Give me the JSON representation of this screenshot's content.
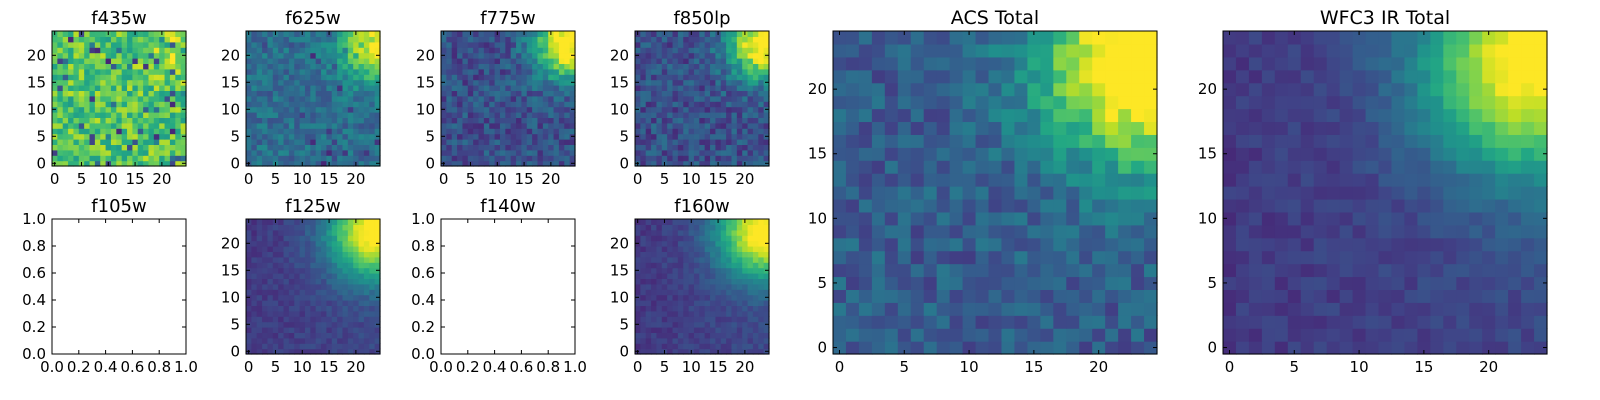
{
  "figure": {
    "panels": [
      {
        "id": "f435w",
        "title": "f435w",
        "kind": "image",
        "pattern": "noise-high",
        "xticks": [
          "0",
          "5",
          "10",
          "15",
          "20"
        ],
        "yticks": [
          "0",
          "5",
          "10",
          "15",
          "20"
        ]
      },
      {
        "id": "f625w",
        "title": "f625w",
        "kind": "image",
        "pattern": "corner-medium",
        "xticks": [
          "0",
          "5",
          "10",
          "15",
          "20"
        ],
        "yticks": [
          "0",
          "5",
          "10",
          "15",
          "20"
        ]
      },
      {
        "id": "f775w",
        "title": "f775w",
        "kind": "image",
        "pattern": "corner-low",
        "xticks": [
          "0",
          "5",
          "10",
          "15",
          "20"
        ],
        "yticks": [
          "0",
          "5",
          "10",
          "15",
          "20"
        ]
      },
      {
        "id": "f850lp",
        "title": "f850lp",
        "kind": "image",
        "pattern": "corner-low",
        "xticks": [
          "0",
          "5",
          "10",
          "15",
          "20"
        ],
        "yticks": [
          "0",
          "5",
          "10",
          "15",
          "20"
        ]
      },
      {
        "id": "f105w",
        "title": "f105w",
        "kind": "empty",
        "xticks": [
          "0.0",
          "0.2",
          "0.4",
          "0.6",
          "0.8",
          "1.0"
        ],
        "yticks": [
          "0.0",
          "0.2",
          "0.4",
          "0.6",
          "0.8",
          "1.0"
        ]
      },
      {
        "id": "f125w",
        "title": "f125w",
        "kind": "image",
        "pattern": "corner-smooth",
        "xticks": [
          "0",
          "5",
          "10",
          "15",
          "20"
        ],
        "yticks": [
          "0",
          "5",
          "10",
          "15",
          "20"
        ]
      },
      {
        "id": "f140w",
        "title": "f140w",
        "kind": "empty",
        "xticks": [
          "0.0",
          "0.2",
          "0.4",
          "0.6",
          "0.8",
          "1.0"
        ],
        "yticks": [
          "0.0",
          "0.2",
          "0.4",
          "0.6",
          "0.8",
          "1.0"
        ]
      },
      {
        "id": "f160w",
        "title": "f160w",
        "kind": "image",
        "pattern": "corner-smooth",
        "xticks": [
          "0",
          "5",
          "10",
          "15",
          "20"
        ],
        "yticks": [
          "0",
          "5",
          "10",
          "15",
          "20"
        ]
      },
      {
        "id": "acs_total",
        "title": "ACS Total",
        "kind": "image",
        "pattern": "corner-blocky",
        "xticks": [
          "0",
          "5",
          "10",
          "15",
          "20"
        ],
        "yticks": [
          "0",
          "5",
          "10",
          "15",
          "20"
        ]
      },
      {
        "id": "wfc3_ir_total",
        "title": "WFC3 IR Total",
        "kind": "image",
        "pattern": "corner-smooth",
        "xticks": [
          "0",
          "5",
          "10",
          "15",
          "20"
        ],
        "yticks": [
          "0",
          "5",
          "10",
          "15",
          "20"
        ]
      }
    ]
  },
  "chart_data": [
    {
      "type": "heatmap",
      "title": "f435w",
      "grid": [
        25,
        25
      ],
      "xlim": [
        -0.5,
        24.5
      ],
      "ylim": [
        -0.5,
        24.5
      ],
      "colormap": "viridis"
    },
    {
      "type": "heatmap",
      "title": "f625w",
      "grid": [
        25,
        25
      ],
      "xlim": [
        -0.5,
        24.5
      ],
      "ylim": [
        -0.5,
        24.5
      ],
      "colormap": "viridis"
    },
    {
      "type": "heatmap",
      "title": "f775w",
      "grid": [
        25,
        25
      ],
      "xlim": [
        -0.5,
        24.5
      ],
      "ylim": [
        -0.5,
        24.5
      ],
      "colormap": "viridis"
    },
    {
      "type": "heatmap",
      "title": "f850lp",
      "grid": [
        25,
        25
      ],
      "xlim": [
        -0.5,
        24.5
      ],
      "ylim": [
        -0.5,
        24.5
      ],
      "colormap": "viridis"
    },
    {
      "type": "scatter",
      "title": "f105w",
      "x": [],
      "y": [],
      "xlim": [
        0,
        1
      ],
      "ylim": [
        0,
        1
      ]
    },
    {
      "type": "heatmap",
      "title": "f125w",
      "grid": [
        25,
        25
      ],
      "xlim": [
        -0.5,
        24.5
      ],
      "ylim": [
        -0.5,
        24.5
      ],
      "colormap": "viridis"
    },
    {
      "type": "scatter",
      "title": "f140w",
      "x": [],
      "y": [],
      "xlim": [
        0,
        1
      ],
      "ylim": [
        0,
        1
      ]
    },
    {
      "type": "heatmap",
      "title": "f160w",
      "grid": [
        25,
        25
      ],
      "xlim": [
        -0.5,
        24.5
      ],
      "ylim": [
        -0.5,
        24.5
      ],
      "colormap": "viridis"
    },
    {
      "type": "heatmap",
      "title": "ACS Total",
      "grid": [
        25,
        25
      ],
      "xlim": [
        -0.5,
        24.5
      ],
      "ylim": [
        -0.5,
        24.5
      ],
      "colormap": "viridis"
    },
    {
      "type": "heatmap",
      "title": "WFC3 IR Total",
      "grid": [
        25,
        25
      ],
      "xlim": [
        -0.5,
        24.5
      ],
      "ylim": [
        -0.5,
        24.5
      ],
      "colormap": "viridis"
    }
  ]
}
